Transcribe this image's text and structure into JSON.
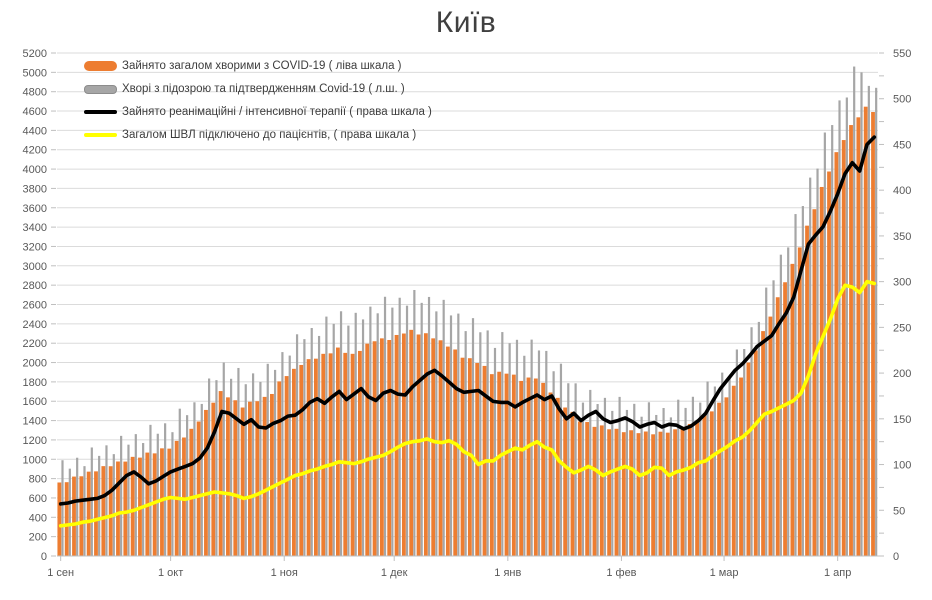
{
  "title": "Київ",
  "colors": {
    "occupied_bars": "#ED7D31",
    "suspected_bars": "#A6A6A6",
    "icu_line": "#000000",
    "ventilator_line": "#FFFF00",
    "gridline": "#DBDBDB",
    "axis_line": "#BFBFBF",
    "axis_text": "#595959",
    "title_text": "#404040"
  },
  "legend": [
    {
      "type": "bar",
      "color_key": "occupied_bars",
      "label": "Зайнято загалом хворими з COVID-19 ( ліва шкала )"
    },
    {
      "type": "bar",
      "color_key": "suspected_bars",
      "label": "Хворі з підозрою та підтвердженням Covid-19 ( л.ш. )"
    },
    {
      "type": "line",
      "color_key": "icu_line",
      "label": "Зайнято реанімаційні / інтенсивної терапії ( права шкала )"
    },
    {
      "type": "line",
      "color_key": "ventilator_line",
      "label": "Загалом ШВЛ  підключено до пацієнтів, ( права шкала )"
    }
  ],
  "chart_data": {
    "type": "combo",
    "title": "Київ",
    "sampling_note": "daily bars estimated at 2-day resolution, 1 Sep - 11 Apr",
    "resolution_days": 2,
    "total_days": 222,
    "left_axis": {
      "min": 0,
      "max": 5200,
      "step": 200
    },
    "right_axis": {
      "min": 0,
      "max": 550,
      "step": 50,
      "minor_step": 25
    },
    "x_ticks": [
      {
        "label": "1 сен",
        "day": 0
      },
      {
        "label": "1 окт",
        "day": 30
      },
      {
        "label": "1 ноя",
        "day": 61
      },
      {
        "label": "1 дек",
        "day": 91
      },
      {
        "label": "1 янв",
        "day": 122
      },
      {
        "label": "1 фев",
        "day": 153
      },
      {
        "label": "1 мар",
        "day": 181
      },
      {
        "label": "1 апр",
        "day": 212
      }
    ],
    "series": [
      {
        "name": "Зайнято загалом хворими з COVID-19 ( ліва шкала )",
        "type": "bar",
        "axis": "left",
        "color_key": "occupied_bars",
        "values": [
          760,
          763,
          821,
          824,
          872,
          875,
          929,
          928,
          977,
          976,
          1025,
          1017,
          1069,
          1061,
          1113,
          1110,
          1190,
          1225,
          1315,
          1390,
          1510,
          1585,
          1705,
          1640,
          1610,
          1535,
          1595,
          1600,
          1645,
          1675,
          1805,
          1860,
          1935,
          1975,
          2035,
          2040,
          2090,
          2095,
          2155,
          2100,
          2090,
          2120,
          2195,
          2220,
          2250,
          2233,
          2285,
          2300,
          2338,
          2290,
          2303,
          2250,
          2230,
          2165,
          2135,
          2050,
          2045,
          1995,
          1965,
          1880,
          1905,
          1885,
          1875,
          1810,
          1845,
          1835,
          1790,
          1690,
          1635,
          1535,
          1490,
          1390,
          1385,
          1335,
          1350,
          1310,
          1315,
          1280,
          1300,
          1270,
          1287,
          1258,
          1285,
          1275,
          1310,
          1310,
          1365,
          1390,
          1460,
          1495,
          1585,
          1640,
          1760,
          1845,
          2000,
          2125,
          2325,
          2475,
          2675,
          2830,
          3020,
          3190,
          3415,
          3585,
          3815,
          3975,
          4175,
          4300,
          4455,
          4535,
          4645,
          4590
        ]
      },
      {
        "name": "Хворі з підозрою та підтвердженням Covid-19 ( л.ш. )",
        "type": "bar",
        "axis": "left",
        "color_key": "suspected_bars",
        "values": [
          990,
          903,
          1016,
          929,
          1122,
          1035,
          1144,
          1053,
          1242,
          1151,
          1260,
          1168,
          1356,
          1264,
          1372,
          1280,
          1523,
          1456,
          1589,
          1572,
          1835,
          1818,
          2000,
          1832,
          1944,
          1776,
          1888,
          1800,
          1987,
          1924,
          2108,
          2072,
          2292,
          2242,
          2357,
          2275,
          2475,
          2400,
          2530,
          2382,
          2514,
          2446,
          2578,
          2509,
          2680,
          2568,
          2670,
          2588,
          2750,
          2617,
          2678,
          2529,
          2648,
          2487,
          2506,
          2325,
          2459,
          2313,
          2332,
          2151,
          2315,
          2200,
          2235,
          2070,
          2237,
          2125,
          2120,
          1910,
          1988,
          1786,
          1785,
          1586,
          1717,
          1571,
          1635,
          1500,
          1645,
          1510,
          1573,
          1440,
          1589,
          1458,
          1530,
          1433,
          1616,
          1531,
          1646,
          1586,
          1804,
          1752,
          1896,
          1864,
          2135,
          2140,
          2365,
          2420,
          2775,
          2850,
          3115,
          3190,
          3535,
          3618,
          3912,
          4005,
          4378,
          4455,
          4710,
          4740,
          5060,
          5000,
          4860,
          4840
        ]
      },
      {
        "name": "Зайнято реанімаційні / інтенсивної терапії ( права шкала )",
        "type": "line",
        "axis": "right",
        "color_key": "icu_line",
        "values": [
          57,
          58,
          60,
          61,
          62,
          63,
          66,
          72,
          80,
          88,
          92,
          86,
          79,
          82,
          87,
          92,
          95,
          98,
          101,
          107,
          118,
          136,
          158,
          156,
          150,
          144,
          149,
          141,
          140,
          145,
          148,
          153,
          154,
          160,
          168,
          172,
          167,
          174,
          180,
          171,
          177,
          183,
          174,
          170,
          178,
          181,
          177,
          176,
          185,
          192,
          199,
          203,
          197,
          190,
          183,
          179,
          180,
          181,
          175,
          169,
          168,
          168,
          163,
          168,
          172,
          176,
          171,
          175,
          161,
          150,
          156,
          148,
          154,
          158,
          150,
          146,
          148,
          151,
          147,
          141,
          144,
          146,
          141,
          144,
          143,
          139,
          142,
          148,
          156,
          170,
          183,
          193,
          203,
          210,
          219,
          229,
          235,
          241,
          254,
          266,
          283,
          312,
          341,
          351,
          360,
          377,
          396,
          418,
          430,
          421,
          450,
          458
        ]
      },
      {
        "name": "Загалом ШВЛ  підключено до пацієнтів, ( права шкала )",
        "type": "line",
        "axis": "right",
        "color_key": "ventilator_line",
        "values": [
          33,
          34,
          35,
          37,
          38,
          40,
          42,
          44,
          47,
          48,
          50,
          53,
          56,
          59,
          62,
          64,
          63,
          62,
          64,
          66,
          68,
          70,
          69,
          68,
          66,
          63,
          65,
          68,
          72,
          76,
          80,
          84,
          88,
          90,
          93,
          95,
          98,
          100,
          103,
          102,
          101,
          103,
          106,
          108,
          110,
          114,
          119,
          123,
          125,
          126,
          128,
          125,
          124,
          126,
          122,
          114,
          110,
          100,
          104,
          104,
          110,
          114,
          118,
          116,
          121,
          125,
          119,
          116,
          104,
          97,
          91,
          94,
          98,
          94,
          88,
          92,
          95,
          98,
          95,
          88,
          91,
          97,
          96,
          88,
          92,
          94,
          97,
          102,
          104,
          110,
          115,
          120,
          126,
          130,
          137,
          146,
          155,
          158,
          162,
          166,
          170,
          178,
          197,
          221,
          240,
          259,
          281,
          296,
          294,
          288,
          300,
          298
        ]
      }
    ]
  }
}
